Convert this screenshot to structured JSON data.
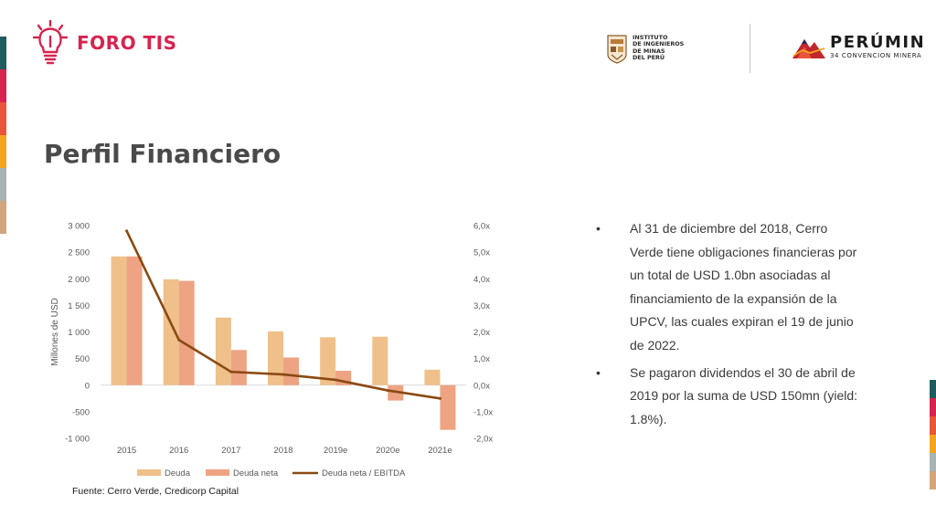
{
  "brand": {
    "name": "FORO TIS"
  },
  "partners": {
    "iim_lines": [
      "INSTITUTO",
      "DE INGENIEROS",
      "DE MINAS",
      "DEL PERÚ"
    ],
    "perumin_name": "PERÚMIN",
    "perumin_sub": "34 CONVENCION MINERA"
  },
  "page": {
    "title": "Perfil Financiero"
  },
  "bullets": [
    "Al 31 de diciembre del 2018, Cerro Verde tiene obligaciones financieras por un total de USD 1.0bn asociadas al financiamiento de la expansión de la UPCV, las cuales expiran el 19 de junio de 2022.",
    "Se pagaron dividendos el 30 de abril de 2019 por la suma de USD 150mn (yield: 1.8%)."
  ],
  "bullet_glyph": "•",
  "source": "Fuente: Cerro Verde, Credicorp Capital",
  "colors": {
    "brand_red": "#d6244f",
    "deuda": "#efc08a",
    "deuda_neta": "#eea383",
    "ratio_line": "#8a4a12",
    "stripes_left": [
      "#1f5c5e",
      "#d6244f",
      "#e8553a",
      "#f3a51f",
      "#a9b3b6",
      "#d3a57c"
    ],
    "stripes_right": [
      "#1f5c5e",
      "#d6244f",
      "#e8553a",
      "#f3a51f",
      "#a9b3b6",
      "#d3a57c"
    ]
  },
  "chart_data": {
    "type": "bar",
    "categories": [
      "2015",
      "2016",
      "2017",
      "2018",
      "2019e",
      "2020e",
      "2021e"
    ],
    "series": [
      {
        "name": "Deuda",
        "type": "bar",
        "axis": "left",
        "values": [
          2420,
          1990,
          1270,
          1010,
          900,
          910,
          290
        ]
      },
      {
        "name": "Deuda neta",
        "type": "bar",
        "axis": "left",
        "values": [
          2420,
          1960,
          660,
          520,
          270,
          -290,
          -840
        ]
      },
      {
        "name": "Deuda neta / EBITDA",
        "type": "line",
        "axis": "right",
        "values": [
          5.8,
          1.7,
          0.5,
          0.4,
          0.2,
          -0.2,
          -0.5
        ]
      }
    ],
    "ylabel": "Millones de USD",
    "ylim": [
      -1000,
      3000
    ],
    "yticks": [
      "3 000",
      "2 500",
      "2 000",
      "1 500",
      "1 000",
      "500",
      "0",
      "-500",
      "-1 000"
    ],
    "y2lim": [
      -2,
      6
    ],
    "y2ticks": [
      "6,0x",
      "5,0x",
      "4,0x",
      "3,0x",
      "2,0x",
      "1,0x",
      "0,0x",
      "-1,0x",
      "-2,0x"
    ],
    "legend_position": "bottom"
  }
}
